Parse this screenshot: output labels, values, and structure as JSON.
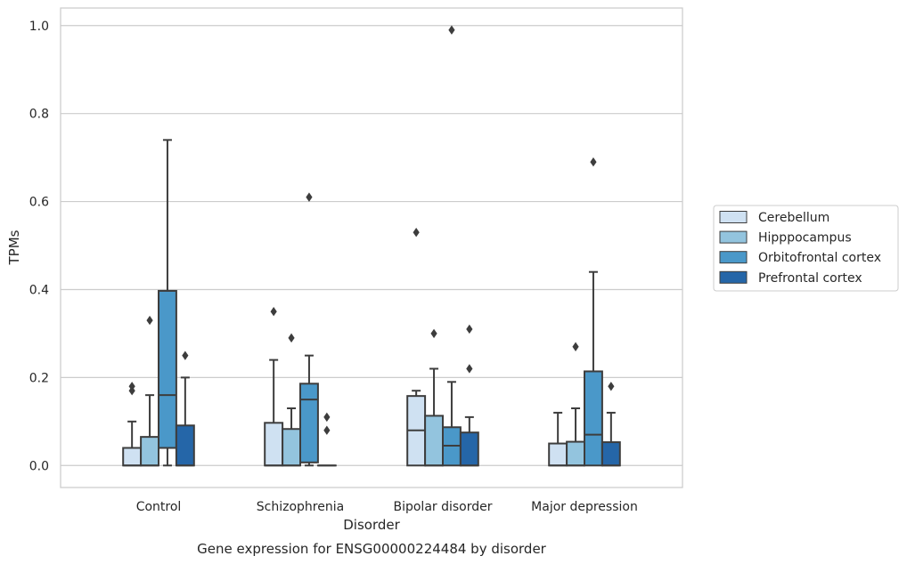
{
  "chart_data": {
    "type": "box",
    "title": "",
    "caption": "Gene expression for ENSG00000224484 by disorder",
    "xlabel": "Disorder",
    "ylabel": "TPMs",
    "ylim": [
      -0.05,
      1.04
    ],
    "yticks": [
      0.0,
      0.2,
      0.4,
      0.6,
      0.8,
      1.0
    ],
    "ytick_labels": [
      "0.0",
      "0.2",
      "0.4",
      "0.6",
      "0.8",
      "1.0"
    ],
    "grid": "horizontal",
    "legend_position": "right",
    "categories": [
      "Control",
      "Schizophrenia",
      "Bipolar disorder",
      "Major depression"
    ],
    "series": [
      {
        "name": "Cerebellum",
        "color": "#cfe1f2",
        "boxes": [
          {
            "whisker_low": 0.0,
            "q1": 0.0,
            "median": 0.0,
            "q3": 0.04,
            "whisker_high": 0.1,
            "outliers": [
              0.17,
              0.18
            ]
          },
          {
            "whisker_low": 0.0,
            "q1": 0.0,
            "median": 0.0,
            "q3": 0.097,
            "whisker_high": 0.24,
            "outliers": [
              0.35
            ]
          },
          {
            "whisker_low": 0.0,
            "q1": 0.0,
            "median": 0.08,
            "q3": 0.158,
            "whisker_high": 0.17,
            "outliers": [
              0.53
            ]
          },
          {
            "whisker_low": 0.0,
            "q1": 0.0,
            "median": 0.0,
            "q3": 0.05,
            "whisker_high": 0.12,
            "outliers": []
          }
        ]
      },
      {
        "name": "Hipppocampus",
        "color": "#93c4de",
        "boxes": [
          {
            "whisker_low": 0.0,
            "q1": 0.0,
            "median": 0.0,
            "q3": 0.065,
            "whisker_high": 0.16,
            "outliers": [
              0.33
            ]
          },
          {
            "whisker_low": 0.0,
            "q1": 0.0,
            "median": 0.0,
            "q3": 0.083,
            "whisker_high": 0.13,
            "outliers": [
              0.29
            ]
          },
          {
            "whisker_low": 0.0,
            "q1": 0.0,
            "median": 0.0,
            "q3": 0.113,
            "whisker_high": 0.22,
            "outliers": [
              0.3
            ]
          },
          {
            "whisker_low": 0.0,
            "q1": 0.0,
            "median": 0.0,
            "q3": 0.054,
            "whisker_high": 0.13,
            "outliers": [
              0.27
            ]
          }
        ]
      },
      {
        "name": "Orbitofrontal cortex",
        "color": "#4a98c9",
        "boxes": [
          {
            "whisker_low": 0.0,
            "q1": 0.04,
            "median": 0.16,
            "q3": 0.397,
            "whisker_high": 0.74,
            "outliers": []
          },
          {
            "whisker_low": 0.0,
            "q1": 0.007,
            "median": 0.15,
            "q3": 0.186,
            "whisker_high": 0.25,
            "outliers": [
              0.61
            ]
          },
          {
            "whisker_low": 0.0,
            "q1": 0.0,
            "median": 0.045,
            "q3": 0.087,
            "whisker_high": 0.19,
            "outliers": [
              0.99
            ]
          },
          {
            "whisker_low": 0.0,
            "q1": 0.0,
            "median": 0.07,
            "q3": 0.214,
            "whisker_high": 0.44,
            "outliers": [
              0.69
            ]
          }
        ]
      },
      {
        "name": "Prefrontal cortex",
        "color": "#2566a8",
        "boxes": [
          {
            "whisker_low": 0.0,
            "q1": 0.0,
            "median": 0.0,
            "q3": 0.091,
            "whisker_high": 0.2,
            "outliers": [
              0.25
            ]
          },
          {
            "whisker_low": 0.0,
            "q1": 0.0,
            "median": 0.0,
            "q3": 0.0,
            "whisker_high": 0.0,
            "outliers": [
              0.08,
              0.11
            ]
          },
          {
            "whisker_low": 0.0,
            "q1": 0.0,
            "median": 0.0,
            "q3": 0.075,
            "whisker_high": 0.11,
            "outliers": [
              0.22,
              0.31
            ]
          },
          {
            "whisker_low": 0.0,
            "q1": 0.0,
            "median": 0.0,
            "q3": 0.053,
            "whisker_high": 0.12,
            "outliers": [
              0.18
            ]
          }
        ]
      }
    ]
  }
}
